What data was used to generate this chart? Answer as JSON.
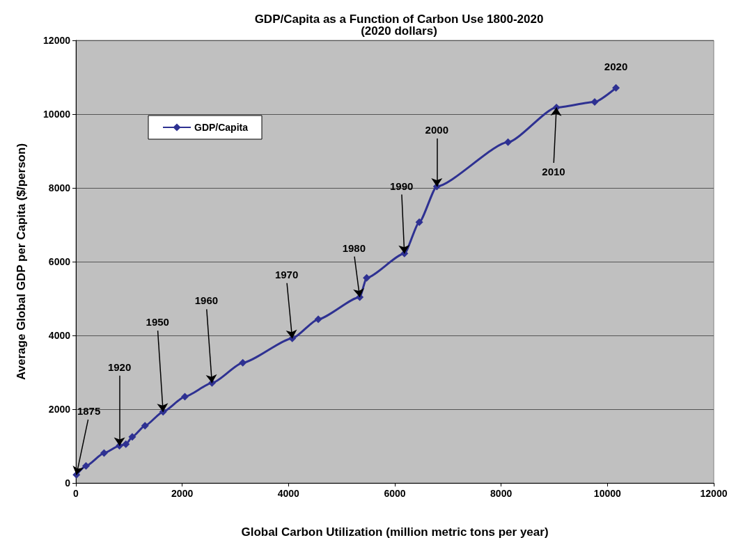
{
  "chart_data": {
    "type": "line",
    "title": "GDP/Capita as a Function of Carbon Use 1800-2020",
    "subtitle": "(2020 dollars)",
    "xlabel": "Global Carbon Utilization (million metric tons per year)",
    "ylabel": "Average Global GDP per Capita ($/person)",
    "x": [
      10,
      190,
      530,
      820,
      940,
      1060,
      1300,
      1640,
      2050,
      2560,
      3140,
      4070,
      4560,
      5340,
      5470,
      6180,
      6460,
      6790,
      8130,
      9040,
      9760,
      10160
    ],
    "series": [
      {
        "name": "GDP/Capita",
        "color": "#2e3192",
        "values": [
          220,
          460,
          810,
          1010,
          1050,
          1250,
          1550,
          1930,
          2340,
          2710,
          3260,
          3920,
          4440,
          5040,
          5560,
          6220,
          7070,
          8040,
          9240,
          10180,
          10330,
          10710
        ]
      }
    ],
    "xlim": [
      0,
      12000
    ],
    "xticks": [
      0,
      2000,
      4000,
      6000,
      8000,
      10000,
      12000
    ],
    "ylim": [
      0,
      12000
    ],
    "yticks": [
      0,
      2000,
      4000,
      6000,
      8000,
      10000,
      12000
    ],
    "grid": "y",
    "legend": "top left",
    "marker": "diamond",
    "line_style": "solid",
    "annotations": [
      {
        "text": "1875",
        "x": 10,
        "y": 220
      },
      {
        "text": "1920",
        "x": 820,
        "y": 1010
      },
      {
        "text": "1950",
        "x": 1640,
        "y": 1930
      },
      {
        "text": "1960",
        "x": 2560,
        "y": 2710
      },
      {
        "text": "1970",
        "x": 4070,
        "y": 3920
      },
      {
        "text": "1980",
        "x": 5340,
        "y": 5040
      },
      {
        "text": "1990",
        "x": 6180,
        "y": 6220
      },
      {
        "text": "2000",
        "x": 6790,
        "y": 8040
      },
      {
        "text": "2010",
        "x": 9040,
        "y": 10180
      },
      {
        "text": "2020",
        "x": 10160,
        "y": 10710
      }
    ]
  }
}
